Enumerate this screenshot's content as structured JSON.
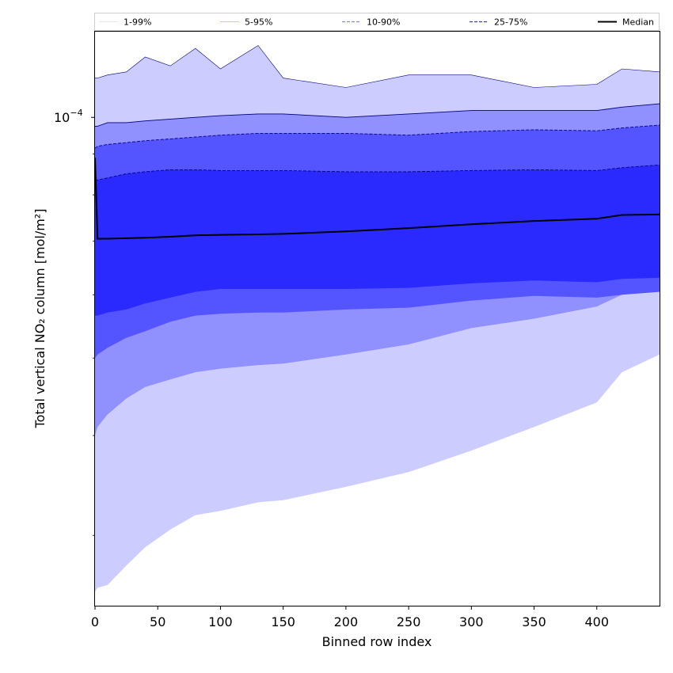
{
  "chart_data": {
    "type": "area",
    "xlabel": "Binned row index",
    "ylabel": "Total vertical NO₂ column [mol/m²]",
    "xlim": [
      0,
      450
    ],
    "ylim": [
      2.45e-05,
      0.000128
    ],
    "yscale": "log",
    "x_ticks": [
      0,
      50,
      100,
      150,
      200,
      250,
      300,
      350,
      400
    ],
    "y_tick_label": {
      "base": "10",
      "exponent": "−4",
      "value": 0.0001
    },
    "y_minor_ticks": [
      3e-05,
      4e-05,
      5e-05,
      6e-05,
      7e-05,
      8e-05,
      9e-05
    ],
    "x": [
      0,
      2,
      10,
      25,
      40,
      60,
      80,
      100,
      130,
      150,
      200,
      250,
      300,
      350,
      400,
      420,
      450
    ],
    "bands": [
      {
        "name": "1-99%",
        "color": "#ccccff",
        "upper": [
          0.000112,
          0.000112,
          0.000113,
          0.000114,
          0.000119,
          0.000116,
          0.000122,
          0.000115,
          0.000123,
          0.000112,
          0.000109,
          0.000113,
          0.000113,
          0.000109,
          0.00011,
          0.000115,
          0.000114
        ],
        "lower": [
          2.55e-05,
          2.58e-05,
          2.6e-05,
          2.75e-05,
          2.9e-05,
          3.05e-05,
          3.18e-05,
          3.22e-05,
          3.3e-05,
          3.32e-05,
          3.45e-05,
          3.6e-05,
          3.83e-05,
          4.1e-05,
          4.4e-05,
          4.8e-05,
          5.05e-05
        ]
      },
      {
        "name": "5-95%",
        "color": "#9090ff",
        "upper": [
          9.75e-05,
          9.75e-05,
          9.85e-05,
          9.85e-05,
          9.9e-05,
          9.95e-05,
          0.0001,
          0.0001005,
          0.000101,
          0.000101,
          0.0001,
          0.000101,
          0.000102,
          0.000102,
          0.000102,
          0.000103,
          0.000104
        ],
        "lower": [
          4e-05,
          4.1e-05,
          4.25e-05,
          4.45e-05,
          4.6e-05,
          4.7e-05,
          4.8e-05,
          4.85e-05,
          4.9e-05,
          4.92e-05,
          5.05e-05,
          5.2e-05,
          5.45e-05,
          5.6e-05,
          5.8e-05,
          6e-05,
          6.1e-05
        ]
      },
      {
        "name": "10-90%",
        "color": "#5555ff",
        "upper": [
          9.15e-05,
          9.2e-05,
          9.25e-05,
          9.3e-05,
          9.35e-05,
          9.4e-05,
          9.45e-05,
          9.5e-05,
          9.55e-05,
          9.55e-05,
          9.55e-05,
          9.5e-05,
          9.6e-05,
          9.65e-05,
          9.62e-05,
          9.7e-05,
          9.78e-05
        ],
        "lower": [
          5e-05,
          5.05e-05,
          5.15e-05,
          5.3e-05,
          5.4e-05,
          5.55e-05,
          5.65e-05,
          5.68e-05,
          5.7e-05,
          5.7e-05,
          5.75e-05,
          5.78e-05,
          5.9e-05,
          5.98e-05,
          5.95e-05,
          6e-05,
          6.05e-05
        ]
      },
      {
        "name": "25-75%",
        "color": "#2a2aff",
        "upper": [
          8.35e-05,
          8.35e-05,
          8.4e-05,
          8.5e-05,
          8.55e-05,
          8.6e-05,
          8.6e-05,
          8.58e-05,
          8.58e-05,
          8.58e-05,
          8.55e-05,
          8.55e-05,
          8.58e-05,
          8.6e-05,
          8.58e-05,
          8.65e-05,
          8.72e-05
        ],
        "lower": [
          5.65e-05,
          5.65e-05,
          5.7e-05,
          5.75e-05,
          5.85e-05,
          5.95e-05,
          6.05e-05,
          6.1e-05,
          6.1e-05,
          6.1e-05,
          6.1e-05,
          6.12e-05,
          6.2e-05,
          6.25e-05,
          6.22e-05,
          6.28e-05,
          6.3e-05
        ]
      }
    ],
    "median": [
      8.9e-05,
      7.05e-05,
      7.05e-05,
      7.06e-05,
      7.07e-05,
      7.09e-05,
      7.12e-05,
      7.13e-05,
      7.14e-05,
      7.15e-05,
      7.2e-05,
      7.27e-05,
      7.35e-05,
      7.42e-05,
      7.47e-05,
      7.55e-05,
      7.56e-05
    ],
    "legend": {
      "placement": "top, above plot",
      "entries": [
        {
          "label": "1-99%",
          "color": "#dcdcff",
          "style": "solid-thin"
        },
        {
          "label": "5-95%",
          "color": "#b0b0ff",
          "style": "solid-thin"
        },
        {
          "label": "10-90%",
          "color": "#8080ff",
          "style": "dashed"
        },
        {
          "label": "25-75%",
          "color": "#3030ff",
          "style": "dashed"
        },
        {
          "label": "Median",
          "color": "#000000",
          "style": "solid-thick"
        }
      ]
    }
  }
}
